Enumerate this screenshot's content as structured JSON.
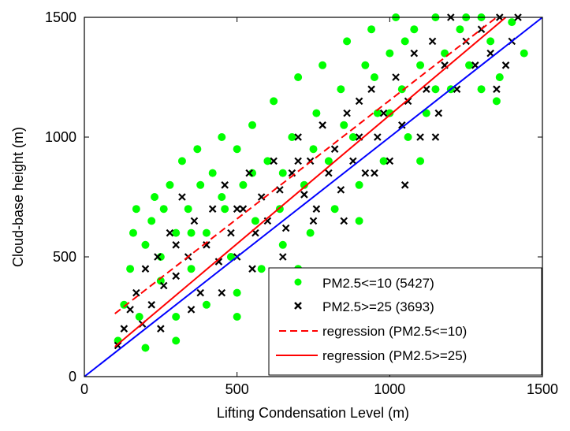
{
  "chart_data": {
    "type": "scatter",
    "title": "",
    "xlabel": "Lifting Condensation Level (m)",
    "ylabel": "Cloud-base height (m)",
    "xlim": [
      0,
      1500
    ],
    "ylim": [
      0,
      1500
    ],
    "xticks": [
      "0",
      "500",
      "1000",
      "1500"
    ],
    "yticks": [
      "0",
      "500",
      "1000",
      "1500"
    ],
    "grid": false,
    "legend_position": "bottom-right",
    "series": [
      {
        "name": "PM2.5<=10 (5427)",
        "marker": "dot",
        "color": "#00ff00",
        "points": [
          [
            110,
            150
          ],
          [
            130,
            300
          ],
          [
            150,
            450
          ],
          [
            160,
            600
          ],
          [
            170,
            700
          ],
          [
            180,
            250
          ],
          [
            200,
            120
          ],
          [
            200,
            550
          ],
          [
            220,
            650
          ],
          [
            230,
            750
          ],
          [
            250,
            400
          ],
          [
            260,
            700
          ],
          [
            280,
            800
          ],
          [
            300,
            600
          ],
          [
            300,
            250
          ],
          [
            320,
            900
          ],
          [
            340,
            700
          ],
          [
            350,
            450
          ],
          [
            370,
            950
          ],
          [
            380,
            800
          ],
          [
            400,
            600
          ],
          [
            400,
            300
          ],
          [
            420,
            850
          ],
          [
            450,
            1000
          ],
          [
            460,
            700
          ],
          [
            480,
            500
          ],
          [
            500,
            950
          ],
          [
            500,
            350
          ],
          [
            520,
            800
          ],
          [
            550,
            1050
          ],
          [
            560,
            650
          ],
          [
            580,
            450
          ],
          [
            600,
            900
          ],
          [
            620,
            1150
          ],
          [
            640,
            700
          ],
          [
            650,
            550
          ],
          [
            680,
            1000
          ],
          [
            700,
            1250
          ],
          [
            720,
            800
          ],
          [
            740,
            600
          ],
          [
            760,
            1100
          ],
          [
            780,
            1300
          ],
          [
            800,
            900
          ],
          [
            820,
            700
          ],
          [
            840,
            1200
          ],
          [
            860,
            1400
          ],
          [
            880,
            1000
          ],
          [
            900,
            800
          ],
          [
            920,
            1300
          ],
          [
            940,
            1450
          ],
          [
            960,
            1100
          ],
          [
            980,
            900
          ],
          [
            1000,
            1350
          ],
          [
            1020,
            1500
          ],
          [
            1040,
            1200
          ],
          [
            1060,
            1000
          ],
          [
            1080,
            1450
          ],
          [
            1100,
            1300
          ],
          [
            1120,
            1100
          ],
          [
            1150,
            1500
          ],
          [
            1180,
            1350
          ],
          [
            1200,
            1200
          ],
          [
            1230,
            1450
          ],
          [
            1260,
            1300
          ],
          [
            1300,
            1500
          ],
          [
            1330,
            1400
          ],
          [
            1360,
            1250
          ],
          [
            1400,
            1480
          ],
          [
            1440,
            1350
          ],
          [
            1300,
            1200
          ],
          [
            1350,
            1150
          ],
          [
            1100,
            900
          ],
          [
            900,
            650
          ],
          [
            700,
            450
          ],
          [
            500,
            250
          ],
          [
            300,
            150
          ],
          [
            250,
            500
          ],
          [
            350,
            600
          ],
          [
            450,
            750
          ],
          [
            550,
            850
          ],
          [
            650,
            850
          ],
          [
            750,
            950
          ],
          [
            850,
            1050
          ],
          [
            950,
            1250
          ],
          [
            1050,
            1400
          ],
          [
            1250,
            1500
          ],
          [
            1150,
            1200
          ],
          [
            1000,
            1100
          ]
        ]
      },
      {
        "name": "PM2.5>=25 (3693)",
        "marker": "x",
        "color": "#000000",
        "points": [
          [
            110,
            130
          ],
          [
            130,
            200
          ],
          [
            150,
            280
          ],
          [
            170,
            350
          ],
          [
            190,
            220
          ],
          [
            200,
            450
          ],
          [
            220,
            300
          ],
          [
            240,
            500
          ],
          [
            260,
            380
          ],
          [
            280,
            600
          ],
          [
            300,
            420
          ],
          [
            320,
            750
          ],
          [
            340,
            500
          ],
          [
            360,
            650
          ],
          [
            380,
            350
          ],
          [
            400,
            550
          ],
          [
            420,
            700
          ],
          [
            440,
            480
          ],
          [
            460,
            800
          ],
          [
            480,
            600
          ],
          [
            500,
            500
          ],
          [
            520,
            700
          ],
          [
            540,
            850
          ],
          [
            560,
            600
          ],
          [
            580,
            750
          ],
          [
            600,
            650
          ],
          [
            620,
            900
          ],
          [
            640,
            780
          ],
          [
            660,
            620
          ],
          [
            680,
            850
          ],
          [
            700,
            1000
          ],
          [
            720,
            760
          ],
          [
            740,
            900
          ],
          [
            760,
            700
          ],
          [
            780,
            1050
          ],
          [
            800,
            850
          ],
          [
            820,
            950
          ],
          [
            840,
            780
          ],
          [
            860,
            1100
          ],
          [
            880,
            900
          ],
          [
            900,
            1000
          ],
          [
            920,
            850
          ],
          [
            940,
            1200
          ],
          [
            960,
            1000
          ],
          [
            980,
            1100
          ],
          [
            1000,
            900
          ],
          [
            1020,
            1250
          ],
          [
            1040,
            1050
          ],
          [
            1060,
            1150
          ],
          [
            1080,
            1350
          ],
          [
            1100,
            1000
          ],
          [
            1120,
            1200
          ],
          [
            1140,
            1400
          ],
          [
            1160,
            1100
          ],
          [
            1180,
            1300
          ],
          [
            1200,
            1500
          ],
          [
            1220,
            1200
          ],
          [
            1250,
            1400
          ],
          [
            1280,
            1300
          ],
          [
            1300,
            1450
          ],
          [
            1330,
            1350
          ],
          [
            1360,
            1500
          ],
          [
            1400,
            1400
          ],
          [
            1420,
            1500
          ],
          [
            1380,
            1300
          ],
          [
            1050,
            800
          ],
          [
            850,
            650
          ],
          [
            650,
            500
          ],
          [
            450,
            350
          ],
          [
            250,
            200
          ],
          [
            350,
            280
          ],
          [
            550,
            450
          ],
          [
            750,
            650
          ],
          [
            950,
            850
          ],
          [
            1150,
            1000
          ],
          [
            1350,
            1200
          ],
          [
            900,
            1150
          ],
          [
            700,
            900
          ],
          [
            500,
            700
          ],
          [
            300,
            550
          ]
        ]
      }
    ],
    "lines": [
      {
        "name": "regression (PM2.5<=10)",
        "style": "dashed",
        "color": "#ff0000",
        "x": [
          100,
          1350
        ],
        "y": [
          263,
          1500
        ]
      },
      {
        "name": "regression (PM2.5>=25)",
        "style": "solid",
        "color": "#ff0000",
        "x": [
          100,
          1380
        ],
        "y": [
          125,
          1500
        ]
      },
      {
        "style": "solid",
        "color": "#0000ff",
        "x": [
          0,
          1500
        ],
        "y": [
          0,
          1500
        ]
      }
    ]
  }
}
